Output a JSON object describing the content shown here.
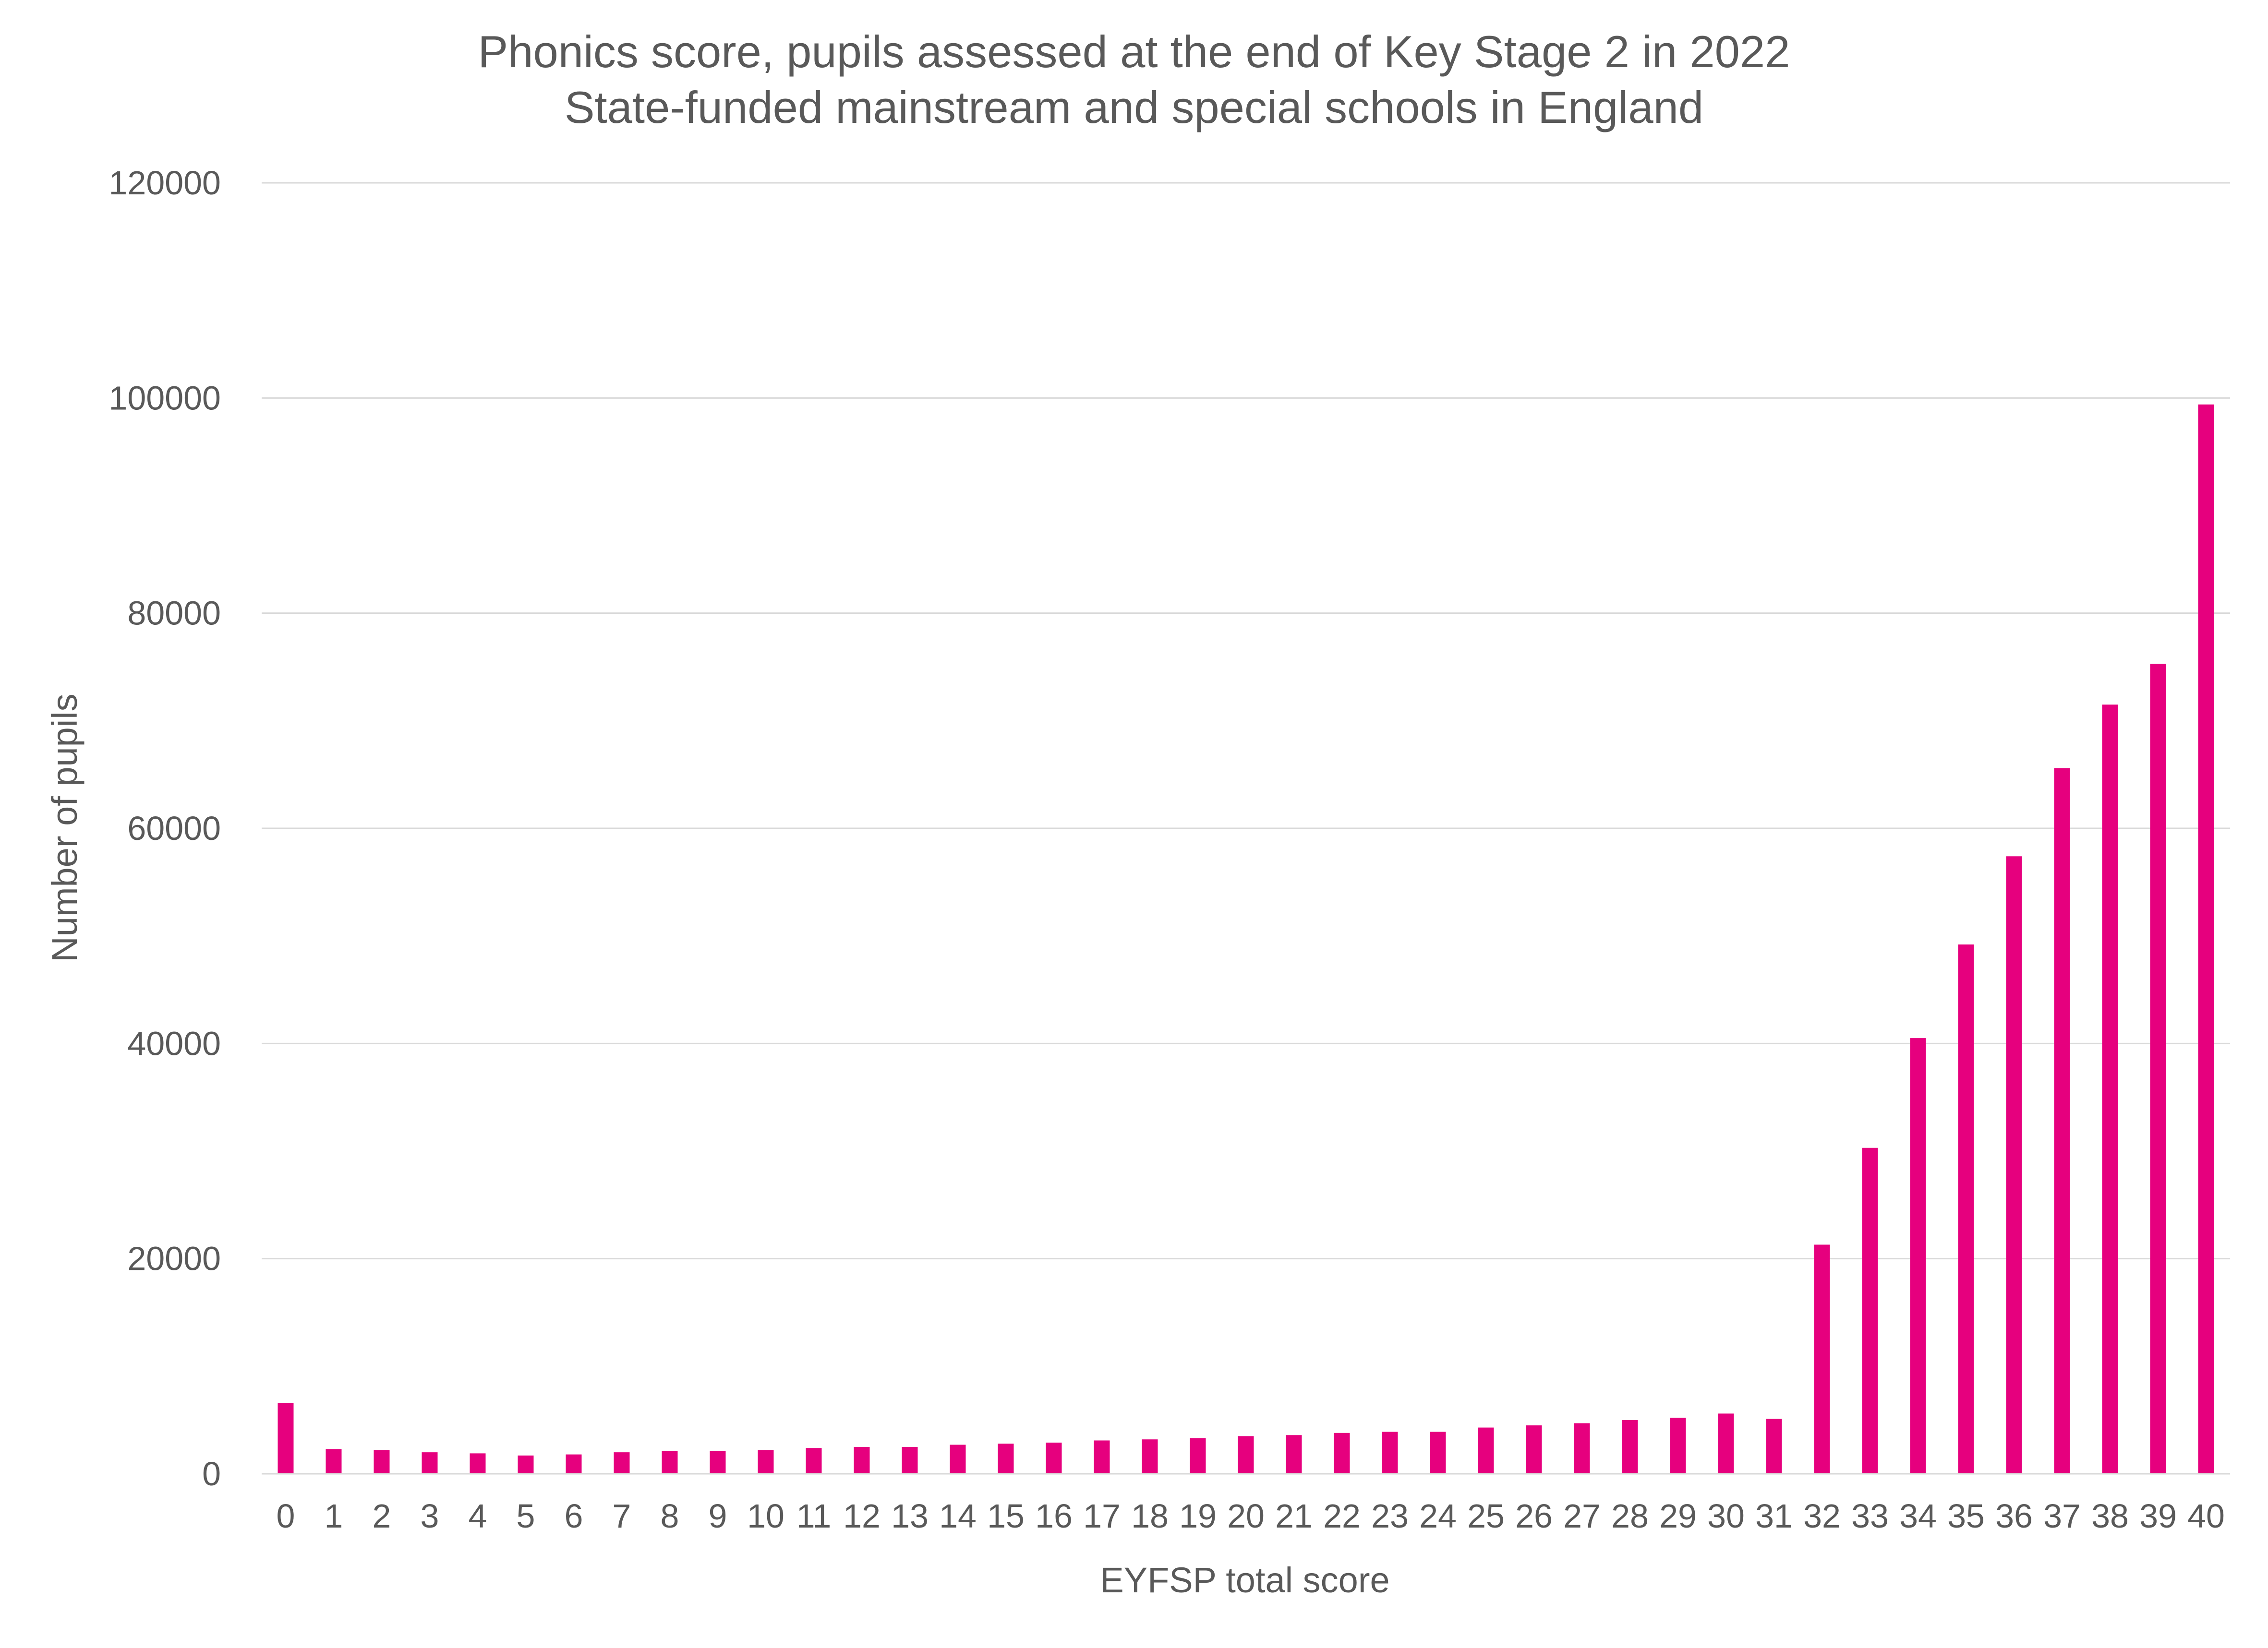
{
  "chart_data": {
    "type": "bar",
    "title": "Phonics score, pupils assessed at the end of Key Stage 2 in 2022",
    "subtitle": "State-funded mainstream and special schools in England",
    "xlabel": "EYFSP total score",
    "ylabel": "Number of pupils",
    "ylim": [
      0,
      120000
    ],
    "yticks": [
      "0",
      "20000",
      "40000",
      "60000",
      "80000",
      "100000",
      "120000"
    ],
    "grid": true,
    "legend": "none",
    "bar_color": "#E6007E",
    "categories": [
      "0",
      "1",
      "2",
      "3",
      "4",
      "5",
      "6",
      "7",
      "8",
      "9",
      "10",
      "11",
      "12",
      "13",
      "14",
      "15",
      "16",
      "17",
      "18",
      "19",
      "20",
      "21",
      "22",
      "23",
      "24",
      "25",
      "26",
      "27",
      "28",
      "29",
      "30",
      "31",
      "32",
      "33",
      "34",
      "35",
      "36",
      "37",
      "38",
      "39",
      "40"
    ],
    "values": [
      6600,
      2300,
      2200,
      2000,
      1900,
      1700,
      1800,
      2000,
      2100,
      2100,
      2200,
      2400,
      2500,
      2500,
      2700,
      2800,
      2900,
      3100,
      3200,
      3300,
      3500,
      3600,
      3800,
      3900,
      3900,
      4300,
      4500,
      4700,
      5000,
      5200,
      5600,
      5100,
      21300,
      30300,
      40500,
      49200,
      57400,
      65600,
      71500,
      75300,
      99400
    ]
  }
}
